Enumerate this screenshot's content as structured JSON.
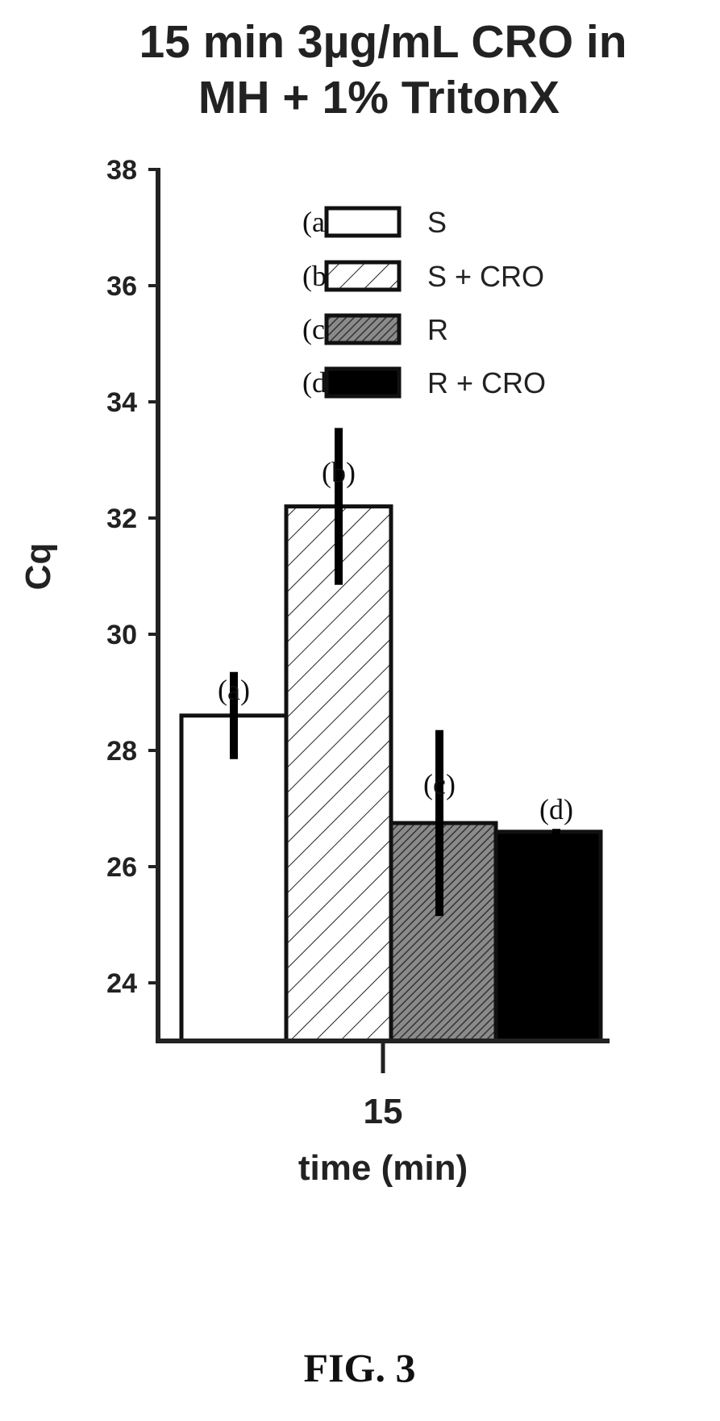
{
  "figure_caption": "FIG. 3",
  "chart_data": {
    "type": "bar",
    "title": [
      "15 min 3µg/mL CRO in",
      "MH + 1% TritonX"
    ],
    "xlabel": "time (min)",
    "ylabel": "Cq",
    "categories": [
      "15"
    ],
    "ylim": [
      23,
      38
    ],
    "yticks": [
      24,
      26,
      28,
      30,
      32,
      34,
      36,
      38
    ],
    "grid": false,
    "legend_position": "top-right",
    "series": [
      {
        "name": "S",
        "letter": "(a)",
        "values": [
          28.6
        ],
        "error": [
          0.75
        ],
        "fill": "white"
      },
      {
        "name": "S + CRO",
        "letter": "(b)",
        "values": [
          32.2
        ],
        "error": [
          1.35
        ],
        "fill": "hatch-light"
      },
      {
        "name": "R",
        "letter": "(c)",
        "values": [
          26.75
        ],
        "error": [
          1.6
        ],
        "fill": "hatch-dark"
      },
      {
        "name": "R + CRO",
        "letter": "(d)",
        "values": [
          26.6
        ],
        "error": [
          0.05
        ],
        "fill": "black"
      }
    ]
  }
}
